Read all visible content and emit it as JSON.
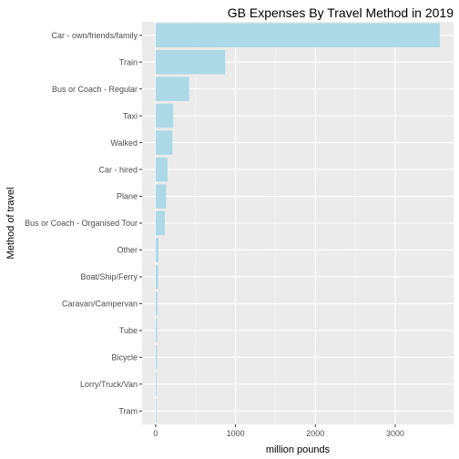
{
  "chart_data": {
    "type": "bar",
    "orientation": "horizontal",
    "title": "GB Expenses By Travel Method in 2019",
    "xlabel": "million pounds",
    "ylabel": "Method of travel",
    "categories": [
      "Car - own/friends/family",
      "Train",
      "Bus or Coach - Regular",
      "Taxi",
      "Walked",
      "Car - hired",
      "Plane",
      "Bus or Coach - Organised Tour",
      "Other",
      "Boat/Ship/Ferry",
      "Caravan/Campervan",
      "Tube",
      "Bicycle",
      "Lorry/Truck/Van",
      "Tram"
    ],
    "values": [
      3560,
      870,
      420,
      220,
      210,
      150,
      130,
      115,
      35,
      30,
      20,
      18,
      17,
      12,
      8
    ],
    "x_ticks": [
      0,
      1000,
      2000,
      3000
    ],
    "xlim": [
      -170,
      3730
    ],
    "grid": true,
    "legend": "none",
    "colors": {
      "bar": "#add8e6",
      "panel": "#ebebeb",
      "grid_major": "#ffffff",
      "grid_minor": "#f5f5f5"
    }
  }
}
